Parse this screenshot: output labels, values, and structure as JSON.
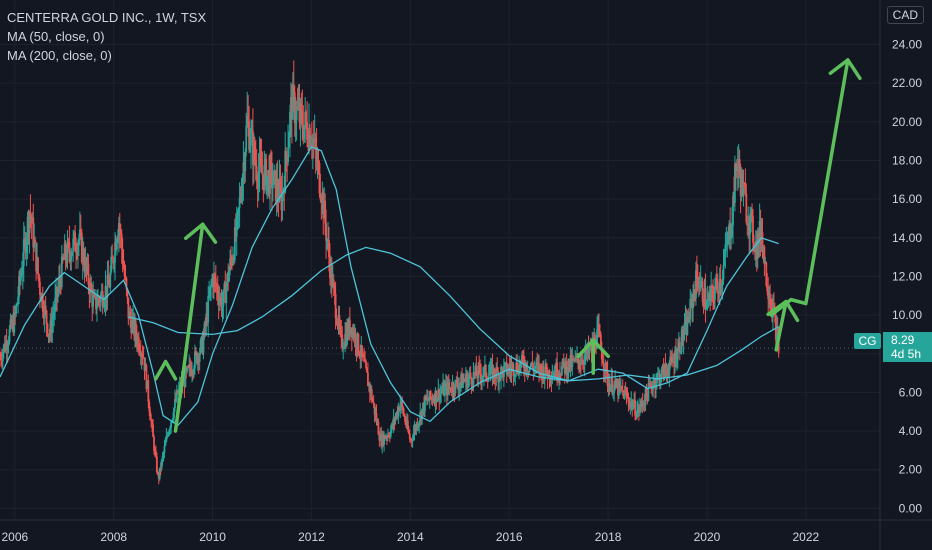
{
  "legend": {
    "title": "CENTERRA GOLD INC., 1W, TSX",
    "ma50": "MA (50, close, 0)",
    "ma200": "MA (200, close, 0)"
  },
  "currency": "CAD",
  "last_price_tag": {
    "symbol": "CG",
    "price": "8.29",
    "countdown": "4d 5h",
    "color": "#26a69a"
  },
  "colors": {
    "background": "#131722",
    "up": "#26a69a",
    "down": "#ef5350",
    "ma": "#4dc4d9",
    "annotation": "#5cbf5c",
    "axis_text": "#d1d4dc"
  },
  "chart_data": {
    "type": "candlestick",
    "title": "CENTERRA GOLD INC., 1W, TSX",
    "x_ticks": [
      "2006",
      "2008",
      "2010",
      "2012",
      "2014",
      "2016",
      "2018",
      "2020",
      "2022"
    ],
    "y_ticks": [
      "0.00",
      "2.00",
      "4.00",
      "6.00",
      "8.00",
      "10.00",
      "12.00",
      "14.00",
      "16.00",
      "18.00",
      "20.00",
      "22.00",
      "24.00"
    ],
    "ylim": [
      -0.6,
      26.3
    ],
    "xlim": [
      2005.7,
      2023.5
    ],
    "last_price": 8.29,
    "close_path": [
      [
        2005.7,
        7.8
      ],
      [
        2006.0,
        9.8
      ],
      [
        2006.3,
        15.5
      ],
      [
        2006.5,
        11.5
      ],
      [
        2006.7,
        9.0
      ],
      [
        2007.0,
        13.0
      ],
      [
        2007.3,
        14.0
      ],
      [
        2007.6,
        10.5
      ],
      [
        2007.9,
        11.5
      ],
      [
        2008.1,
        15.0
      ],
      [
        2008.3,
        10.0
      ],
      [
        2008.6,
        8.0
      ],
      [
        2008.8,
        3.5
      ],
      [
        2008.9,
        1.5
      ],
      [
        2009.1,
        4.0
      ],
      [
        2009.3,
        6.0
      ],
      [
        2009.6,
        7.5
      ],
      [
        2009.8,
        8.5
      ],
      [
        2010.0,
        12.0
      ],
      [
        2010.2,
        10.5
      ],
      [
        2010.5,
        14.5
      ],
      [
        2010.7,
        20.0
      ],
      [
        2010.9,
        17.5
      ],
      [
        2011.2,
        17.0
      ],
      [
        2011.4,
        16.0
      ],
      [
        2011.6,
        21.0
      ],
      [
        2011.8,
        20.0
      ],
      [
        2012.0,
        19.5
      ],
      [
        2012.2,
        16.5
      ],
      [
        2012.4,
        12.0
      ],
      [
        2012.6,
        8.5
      ],
      [
        2012.8,
        9.5
      ],
      [
        2013.0,
        8.0
      ],
      [
        2013.2,
        6.0
      ],
      [
        2013.4,
        3.5
      ],
      [
        2013.6,
        4.0
      ],
      [
        2013.8,
        5.5
      ],
      [
        2014.0,
        3.5
      ],
      [
        2014.3,
        5.5
      ],
      [
        2014.6,
        6.0
      ],
      [
        2015.0,
        6.5
      ],
      [
        2015.4,
        7.0
      ],
      [
        2015.8,
        7.0
      ],
      [
        2016.3,
        7.5
      ],
      [
        2016.8,
        7.0
      ],
      [
        2017.3,
        7.5
      ],
      [
        2017.6,
        8.0
      ],
      [
        2017.8,
        9.0
      ],
      [
        2018.0,
        6.5
      ],
      [
        2018.3,
        6.0
      ],
      [
        2018.6,
        5.0
      ],
      [
        2018.9,
        6.5
      ],
      [
        2019.3,
        7.5
      ],
      [
        2019.6,
        9.5
      ],
      [
        2019.8,
        12.0
      ],
      [
        2020.0,
        10.5
      ],
      [
        2020.3,
        12.0
      ],
      [
        2020.5,
        15.0
      ],
      [
        2020.6,
        18.0
      ],
      [
        2020.8,
        15.5
      ],
      [
        2021.0,
        13.5
      ],
      [
        2021.1,
        14.5
      ],
      [
        2021.2,
        12.0
      ],
      [
        2021.35,
        10.0
      ],
      [
        2021.45,
        8.3
      ]
    ],
    "series": [
      {
        "name": "MA (50, close, 0)",
        "values": [
          [
            2005.7,
            6.8
          ],
          [
            2006.2,
            9.5
          ],
          [
            2006.7,
            11.5
          ],
          [
            2007.0,
            12.2
          ],
          [
            2007.4,
            11.5
          ],
          [
            2007.8,
            10.8
          ],
          [
            2008.2,
            11.8
          ],
          [
            2008.5,
            10.0
          ],
          [
            2008.8,
            7.0
          ],
          [
            2009.0,
            4.8
          ],
          [
            2009.3,
            4.3
          ],
          [
            2009.7,
            5.5
          ],
          [
            2010.0,
            8.0
          ],
          [
            2010.4,
            10.5
          ],
          [
            2010.8,
            13.5
          ],
          [
            2011.2,
            15.5
          ],
          [
            2011.6,
            17.0
          ],
          [
            2012.0,
            18.7
          ],
          [
            2012.2,
            18.5
          ],
          [
            2012.5,
            16.5
          ],
          [
            2012.8,
            12.5
          ],
          [
            2013.2,
            8.5
          ],
          [
            2013.6,
            6.5
          ],
          [
            2014.0,
            5.0
          ],
          [
            2014.4,
            4.5
          ],
          [
            2014.8,
            5.5
          ],
          [
            2015.4,
            6.5
          ],
          [
            2016.0,
            7.2
          ],
          [
            2016.6,
            6.8
          ],
          [
            2017.2,
            6.6
          ],
          [
            2017.8,
            7.2
          ],
          [
            2018.3,
            7.0
          ],
          [
            2018.8,
            6.2
          ],
          [
            2019.2,
            6.5
          ],
          [
            2019.6,
            7.0
          ],
          [
            2020.0,
            9.2
          ],
          [
            2020.4,
            11.5
          ],
          [
            2020.8,
            13.0
          ],
          [
            2021.1,
            14.0
          ],
          [
            2021.45,
            13.7
          ]
        ]
      },
      {
        "name": "MA (200, close, 0)",
        "values": [
          [
            2008.3,
            9.9
          ],
          [
            2008.8,
            9.6
          ],
          [
            2009.3,
            9.1
          ],
          [
            2010.0,
            9.0
          ],
          [
            2010.5,
            9.2
          ],
          [
            2011.0,
            9.9
          ],
          [
            2011.6,
            11.0
          ],
          [
            2012.2,
            12.3
          ],
          [
            2012.7,
            13.1
          ],
          [
            2013.1,
            13.5
          ],
          [
            2013.6,
            13.2
          ],
          [
            2014.2,
            12.5
          ],
          [
            2014.8,
            11.0
          ],
          [
            2015.4,
            9.3
          ],
          [
            2016.0,
            7.9
          ],
          [
            2016.6,
            7.0
          ],
          [
            2017.2,
            6.6
          ],
          [
            2017.8,
            6.7
          ],
          [
            2018.4,
            6.9
          ],
          [
            2019.0,
            6.7
          ],
          [
            2019.6,
            6.9
          ],
          [
            2020.2,
            7.4
          ],
          [
            2020.7,
            8.2
          ],
          [
            2021.1,
            8.9
          ],
          [
            2021.45,
            9.4
          ]
        ]
      }
    ],
    "annotations": [
      {
        "type": "arrow-up",
        "from": [
          2009.25,
          4.0
        ],
        "to": [
          2009.8,
          14.7
        ]
      },
      {
        "type": "arrow-up",
        "from": [
          2008.85,
          6.7
        ],
        "to": [
          2009.25,
          7.6
        ],
        "kind": "chevron"
      },
      {
        "type": "arrow-up",
        "from": [
          2017.7,
          7.0
        ],
        "to": [
          2017.7,
          8.7
        ]
      },
      {
        "type": "arrow-up",
        "from": [
          2021.4,
          8.2
        ],
        "to": [
          2021.6,
          10.7
        ]
      },
      {
        "type": "arrow-up",
        "from": [
          2022.0,
          10.6
        ],
        "to": [
          2022.85,
          23.2
        ]
      }
    ]
  }
}
